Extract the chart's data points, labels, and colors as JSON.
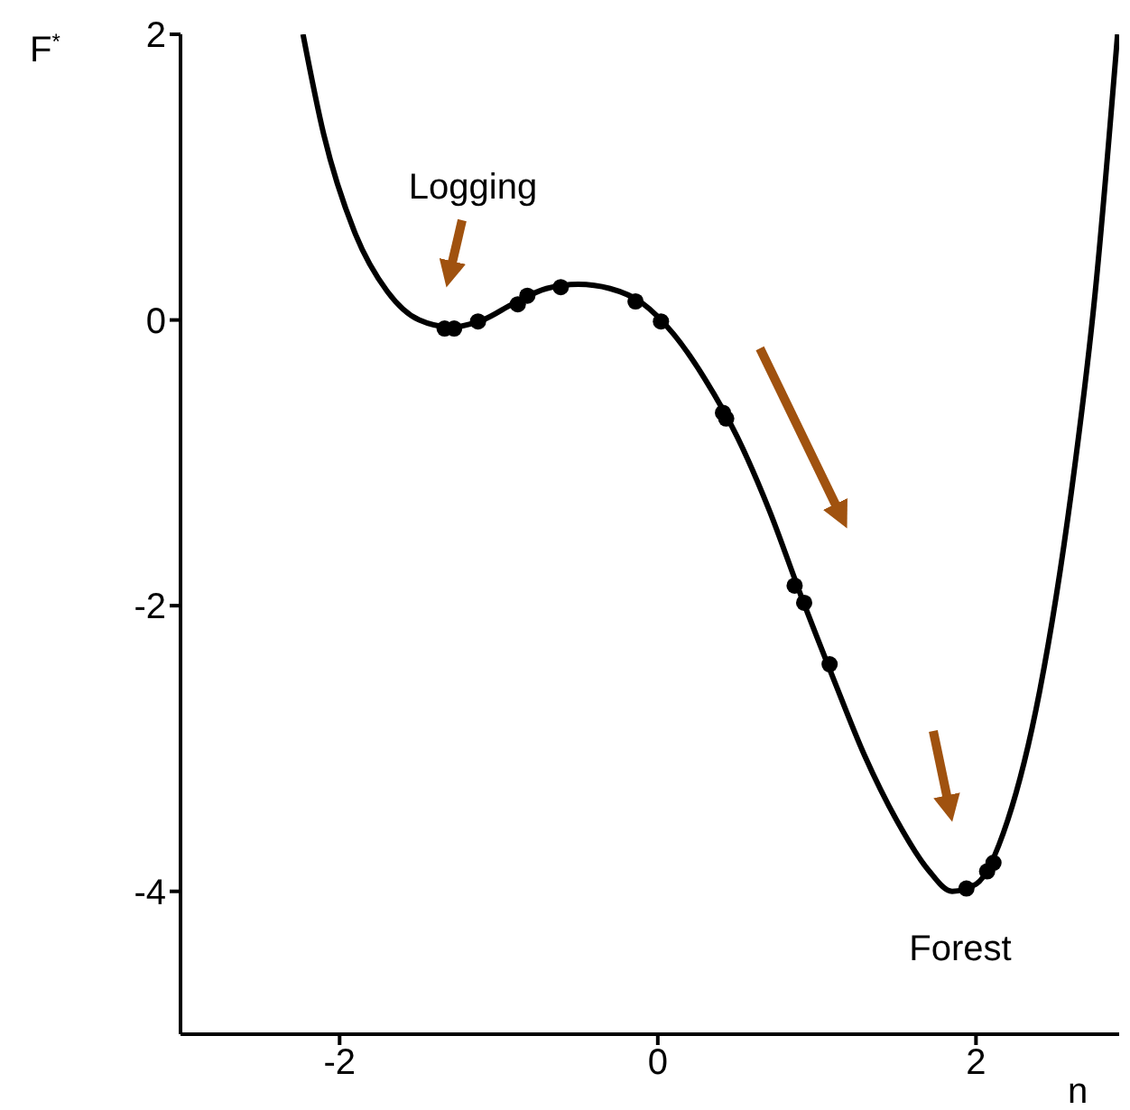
{
  "chart_data": {
    "type": "line",
    "xlabel": "n",
    "ylabel": "F$^{*}$",
    "xlim": [
      -3,
      2.9
    ],
    "ylim": [
      -5,
      2
    ],
    "xticks": [
      -2,
      0,
      2
    ],
    "yticks": [
      -4,
      -2,
      0,
      2
    ],
    "annotations": [
      "Logging",
      "Forest"
    ],
    "series": [
      {
        "color": "#000000",
        "marker": "none",
        "line_style": "solid",
        "x": [
          -2.23,
          -2.1,
          -1.9,
          -1.7,
          -1.5,
          -1.3,
          -1.1,
          -0.9,
          -0.7,
          -0.5,
          -0.3,
          -0.1,
          0.1,
          0.3,
          0.5,
          0.7,
          0.9,
          1.1,
          1.3,
          1.5,
          1.7,
          1.85,
          2.0,
          2.2,
          2.4,
          2.6,
          2.75,
          2.89
        ],
        "values": [
          2,
          1.3,
          0.6,
          0.2,
          0.0,
          -0.05,
          0.0,
          0.12,
          0.22,
          0.25,
          0.22,
          0.12,
          -0.1,
          -0.42,
          -0.82,
          -1.33,
          -1.93,
          -2.5,
          -3.05,
          -3.5,
          -3.85,
          -4.0,
          -3.95,
          -3.5,
          -2.6,
          -1.2,
          0.2,
          2
        ]
      },
      {
        "type": "scatter",
        "color": "#000000",
        "marker": "circle",
        "x": [
          -1.34,
          -1.28,
          -1.13,
          -0.88,
          -0.82,
          -0.61,
          -0.14,
          0.02,
          0.41,
          0.43,
          0.86,
          0.92,
          1.08,
          1.94,
          2.07,
          2.11
        ],
        "values": [
          -0.06,
          -0.06,
          -0.01,
          0.11,
          0.17,
          0.23,
          0.13,
          -0.01,
          -0.65,
          -0.69,
          -1.86,
          -1.98,
          -2.41,
          -3.98,
          -3.86,
          -3.8
        ]
      }
    ]
  }
}
